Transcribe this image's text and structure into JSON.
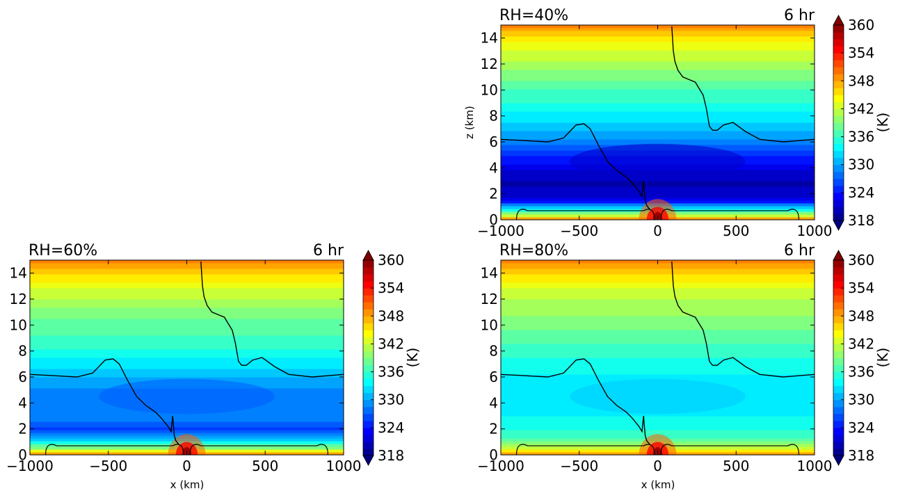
{
  "chart_data": [
    {
      "type": "heatmap",
      "panel": "top-right",
      "title_left": "RH=40%",
      "title_right": "6 hr",
      "xlabel": "",
      "ylabel": "z (km)",
      "xlim": [
        -1000,
        1000
      ],
      "ylim": [
        0,
        15
      ],
      "xticks": [
        -1000,
        -500,
        0,
        500,
        1000
      ],
      "yticks": [
        0,
        2,
        4,
        6,
        8,
        10,
        12,
        14
      ],
      "colorbar": {
        "label": "(K)",
        "ticks": [
          318,
          324,
          330,
          336,
          342,
          348,
          354,
          360
        ],
        "vmin": 318,
        "vmax": 360,
        "colormap": "jet",
        "extend": "both"
      },
      "rh_percent": 40,
      "z_km": [
        0,
        0.25,
        0.5,
        0.75,
        1.0,
        1.5,
        2.0,
        2.75,
        3.5,
        4.25,
        5.0,
        5.75,
        6.5,
        7.25,
        8.0,
        8.75,
        9.5,
        10.25,
        11.0,
        11.75,
        12.5,
        13.25,
        14.0,
        14.5,
        15.0
      ],
      "theta_K": [
        350,
        344,
        339,
        335,
        331,
        323,
        321,
        320,
        321,
        323,
        325,
        328,
        330,
        332,
        333,
        335,
        336,
        337,
        339,
        340,
        342,
        343,
        345,
        347,
        350
      ],
      "contour_line_1_x": [
        -1000,
        -850,
        -700,
        -600,
        -520,
        -470,
        -430,
        -380,
        -320,
        -260,
        -200,
        -160,
        -120,
        -100,
        -90,
        -80,
        -70,
        -50
      ],
      "contour_line_1_z": [
        6.2,
        6.1,
        6.0,
        6.3,
        7.3,
        7.4,
        7.0,
        5.8,
        4.5,
        3.8,
        3.3,
        2.8,
        2.2,
        1.8,
        3.0,
        1.5,
        1.1,
        0.8
      ],
      "contour_line_2_x": [
        90,
        100,
        110,
        130,
        160,
        200,
        240,
        260,
        290,
        310,
        330,
        350,
        380,
        420,
        480,
        560,
        650,
        800,
        1000
      ],
      "contour_line_2_z": [
        14.9,
        13.0,
        12.2,
        11.5,
        11.0,
        10.8,
        10.6,
        10.2,
        9.6,
        8.6,
        7.2,
        6.9,
        6.9,
        7.3,
        7.5,
        6.8,
        6.2,
        6.0,
        6.2
      ]
    },
    {
      "type": "heatmap",
      "panel": "bottom-left",
      "title_left": "RH=60%",
      "title_right": "6 hr",
      "xlabel": "x (km)",
      "ylabel": "",
      "xlim": [
        -1000,
        1000
      ],
      "ylim": [
        0,
        15
      ],
      "xticks": [
        -1000,
        -500,
        0,
        500,
        1000
      ],
      "yticks": [
        0,
        2,
        4,
        6,
        8,
        10,
        12,
        14
      ],
      "colorbar": {
        "label": "(K)",
        "ticks": [
          318,
          324,
          330,
          336,
          342,
          348,
          354,
          360
        ],
        "vmin": 318,
        "vmax": 360,
        "colormap": "jet",
        "extend": "both"
      },
      "rh_percent": 60,
      "z_km": [
        0,
        0.25,
        0.5,
        0.75,
        1.0,
        1.5,
        2.0,
        2.75,
        3.5,
        4.25,
        5.0,
        5.75,
        6.5,
        7.25,
        8.0,
        8.75,
        9.5,
        10.25,
        11.0,
        11.75,
        12.5,
        13.25,
        14.0,
        14.5,
        15.0
      ],
      "theta_K": [
        350,
        345,
        340,
        337,
        334,
        329,
        326,
        328,
        328,
        328,
        329,
        330,
        332,
        333,
        335,
        336,
        337,
        338,
        339,
        341,
        342,
        344,
        346,
        348,
        350
      ],
      "contour_line_1_x": [
        -1000,
        -850,
        -700,
        -600,
        -520,
        -470,
        -430,
        -380,
        -320,
        -260,
        -200,
        -160,
        -120,
        -100,
        -90,
        -80,
        -70,
        -50
      ],
      "contour_line_1_z": [
        6.2,
        6.1,
        6.0,
        6.3,
        7.3,
        7.4,
        7.0,
        5.8,
        4.5,
        3.8,
        3.3,
        2.8,
        2.2,
        1.8,
        3.0,
        1.5,
        1.1,
        0.8
      ],
      "contour_line_2_x": [
        90,
        100,
        110,
        130,
        160,
        200,
        240,
        260,
        290,
        310,
        330,
        350,
        380,
        420,
        480,
        560,
        650,
        800,
        1000
      ],
      "contour_line_2_z": [
        14.9,
        13.0,
        12.2,
        11.5,
        11.0,
        10.8,
        10.6,
        10.2,
        9.6,
        8.6,
        7.2,
        6.9,
        6.9,
        7.3,
        7.5,
        6.8,
        6.2,
        6.0,
        6.2
      ]
    },
    {
      "type": "heatmap",
      "panel": "bottom-right",
      "title_left": "RH=80%",
      "title_right": "6 hr",
      "xlabel": "x (km)",
      "ylabel": "",
      "xlim": [
        -1000,
        1000
      ],
      "ylim": [
        0,
        15
      ],
      "xticks": [
        -1000,
        -500,
        0,
        500,
        1000
      ],
      "yticks": [
        0,
        2,
        4,
        6,
        8,
        10,
        12,
        14
      ],
      "colorbar": {
        "label": "(K)",
        "ticks": [
          318,
          324,
          330,
          336,
          342,
          348,
          354,
          360
        ],
        "vmin": 318,
        "vmax": 360,
        "colormap": "jet",
        "extend": "both"
      },
      "rh_percent": 80,
      "z_km": [
        0,
        0.25,
        0.5,
        0.75,
        1.0,
        1.5,
        2.0,
        2.75,
        3.5,
        4.25,
        5.0,
        5.75,
        6.5,
        7.25,
        8.0,
        8.75,
        9.5,
        10.25,
        11.0,
        11.75,
        12.5,
        13.25,
        14.0,
        14.5,
        15.0
      ],
      "theta_K": [
        350,
        346,
        343,
        340,
        338,
        336,
        335,
        334,
        333,
        333,
        333,
        333,
        334,
        335,
        336,
        337,
        338,
        339,
        340,
        341,
        342,
        344,
        346,
        348,
        350
      ],
      "contour_line_1_x": [
        -1000,
        -850,
        -700,
        -600,
        -520,
        -470,
        -430,
        -380,
        -320,
        -260,
        -200,
        -160,
        -120,
        -100,
        -90,
        -80,
        -70,
        -50
      ],
      "contour_line_1_z": [
        6.2,
        6.1,
        6.0,
        6.3,
        7.3,
        7.4,
        7.0,
        5.8,
        4.5,
        3.8,
        3.3,
        2.8,
        2.2,
        1.8,
        3.0,
        1.5,
        1.1,
        0.8
      ],
      "contour_line_2_x": [
        90,
        100,
        110,
        130,
        160,
        200,
        240,
        260,
        290,
        310,
        330,
        350,
        380,
        420,
        480,
        560,
        650,
        800,
        1000
      ],
      "contour_line_2_z": [
        14.9,
        13.0,
        12.2,
        11.5,
        11.0,
        10.8,
        10.6,
        10.2,
        9.6,
        8.6,
        7.2,
        6.9,
        6.9,
        7.3,
        7.5,
        6.8,
        6.2,
        6.0,
        6.2
      ]
    }
  ]
}
